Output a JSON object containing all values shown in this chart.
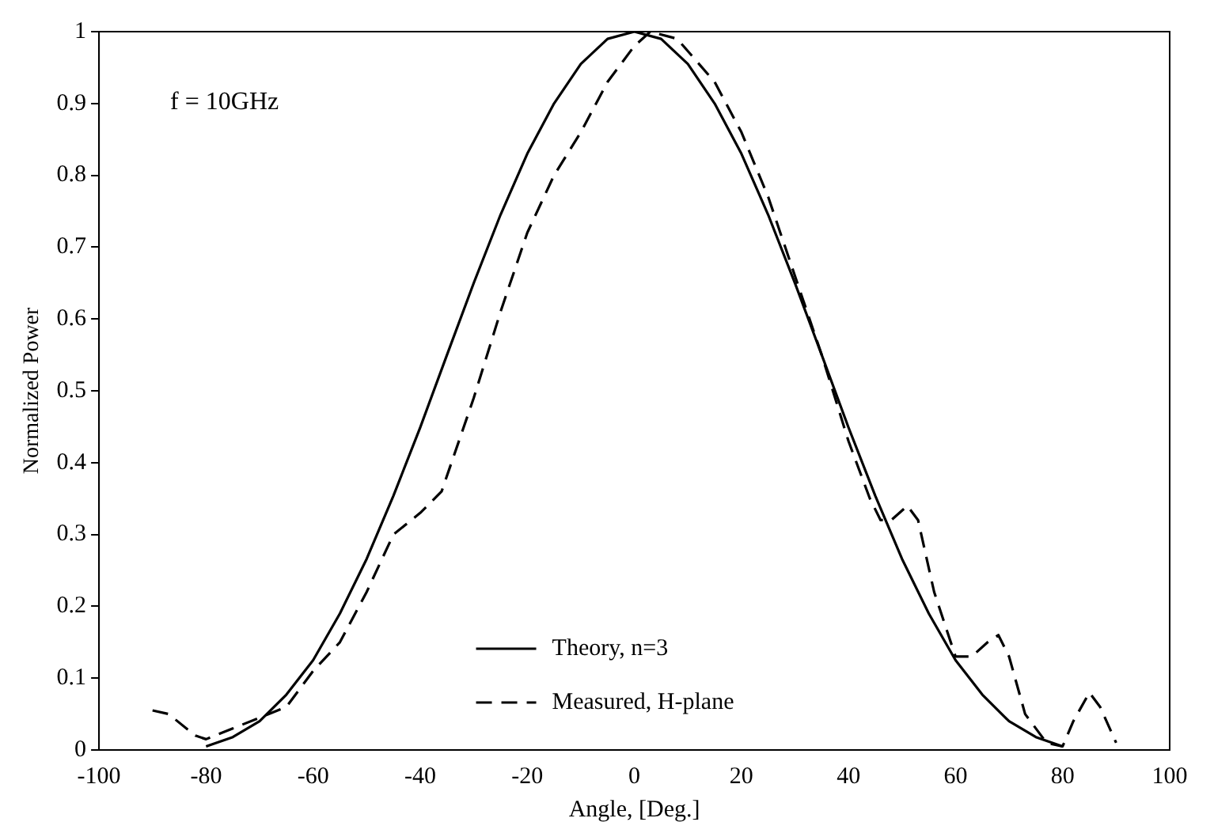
{
  "chart_data": {
    "type": "line",
    "xlabel": "Angle, [Deg.]",
    "ylabel": "Normalized Power",
    "annotations": [
      "f = 10GHz"
    ],
    "xlim": [
      -100,
      100
    ],
    "xticks": [
      -100,
      -80,
      -60,
      -40,
      -20,
      0,
      20,
      40,
      60,
      80,
      100
    ],
    "ylim": [
      0,
      1
    ],
    "yticks": [
      0,
      0.1,
      0.2,
      0.3,
      0.4,
      0.5,
      0.6,
      0.7,
      0.8,
      0.9,
      1
    ],
    "grid": false,
    "legend": "bottom",
    "marker": "none",
    "series": [
      {
        "name": "Theory, n=3",
        "color": "#000000",
        "line_style": "solid",
        "x": [
          -80,
          -75,
          -70,
          -65,
          -60,
          -55,
          -50,
          -45,
          -40,
          -35,
          -30,
          -25,
          -20,
          -15,
          -10,
          -5,
          0,
          5,
          10,
          15,
          20,
          25,
          30,
          35,
          40,
          45,
          50,
          55,
          60,
          65,
          70,
          75,
          80
        ],
        "values": [
          0.005,
          0.018,
          0.04,
          0.077,
          0.125,
          0.19,
          0.266,
          0.354,
          0.449,
          0.55,
          0.65,
          0.745,
          0.83,
          0.9,
          0.955,
          0.99,
          1,
          0.99,
          0.955,
          0.9,
          0.83,
          0.745,
          0.65,
          0.55,
          0.449,
          0.354,
          0.266,
          0.19,
          0.125,
          0.077,
          0.04,
          0.018,
          0.005
        ]
      },
      {
        "name": "Measured, H-plane",
        "color": "#000000",
        "line_style": "dashed",
        "x": [
          -90,
          -87,
          -82,
          -80,
          -75,
          -70,
          -65,
          -60,
          -55,
          -50,
          -45,
          -40,
          -36,
          -30,
          -25,
          -20,
          -15,
          -10,
          -5,
          0,
          3,
          8,
          15,
          20,
          25,
          30,
          35,
          40,
          44,
          46,
          48,
          51,
          53,
          56,
          60,
          63,
          66,
          68,
          70,
          73,
          77,
          80,
          82,
          85,
          87,
          90
        ],
        "values": [
          0.055,
          0.05,
          0.02,
          0.015,
          0.03,
          0.045,
          0.06,
          0.11,
          0.15,
          0.22,
          0.3,
          0.33,
          0.36,
          0.49,
          0.61,
          0.72,
          0.8,
          0.86,
          0.93,
          0.98,
          1,
          0.99,
          0.93,
          0.86,
          0.77,
          0.66,
          0.55,
          0.43,
          0.35,
          0.32,
          0.32,
          0.34,
          0.32,
          0.22,
          0.13,
          0.13,
          0.15,
          0.16,
          0.13,
          0.05,
          0.01,
          0.005,
          0.04,
          0.08,
          0.06,
          0.01
        ]
      }
    ]
  }
}
